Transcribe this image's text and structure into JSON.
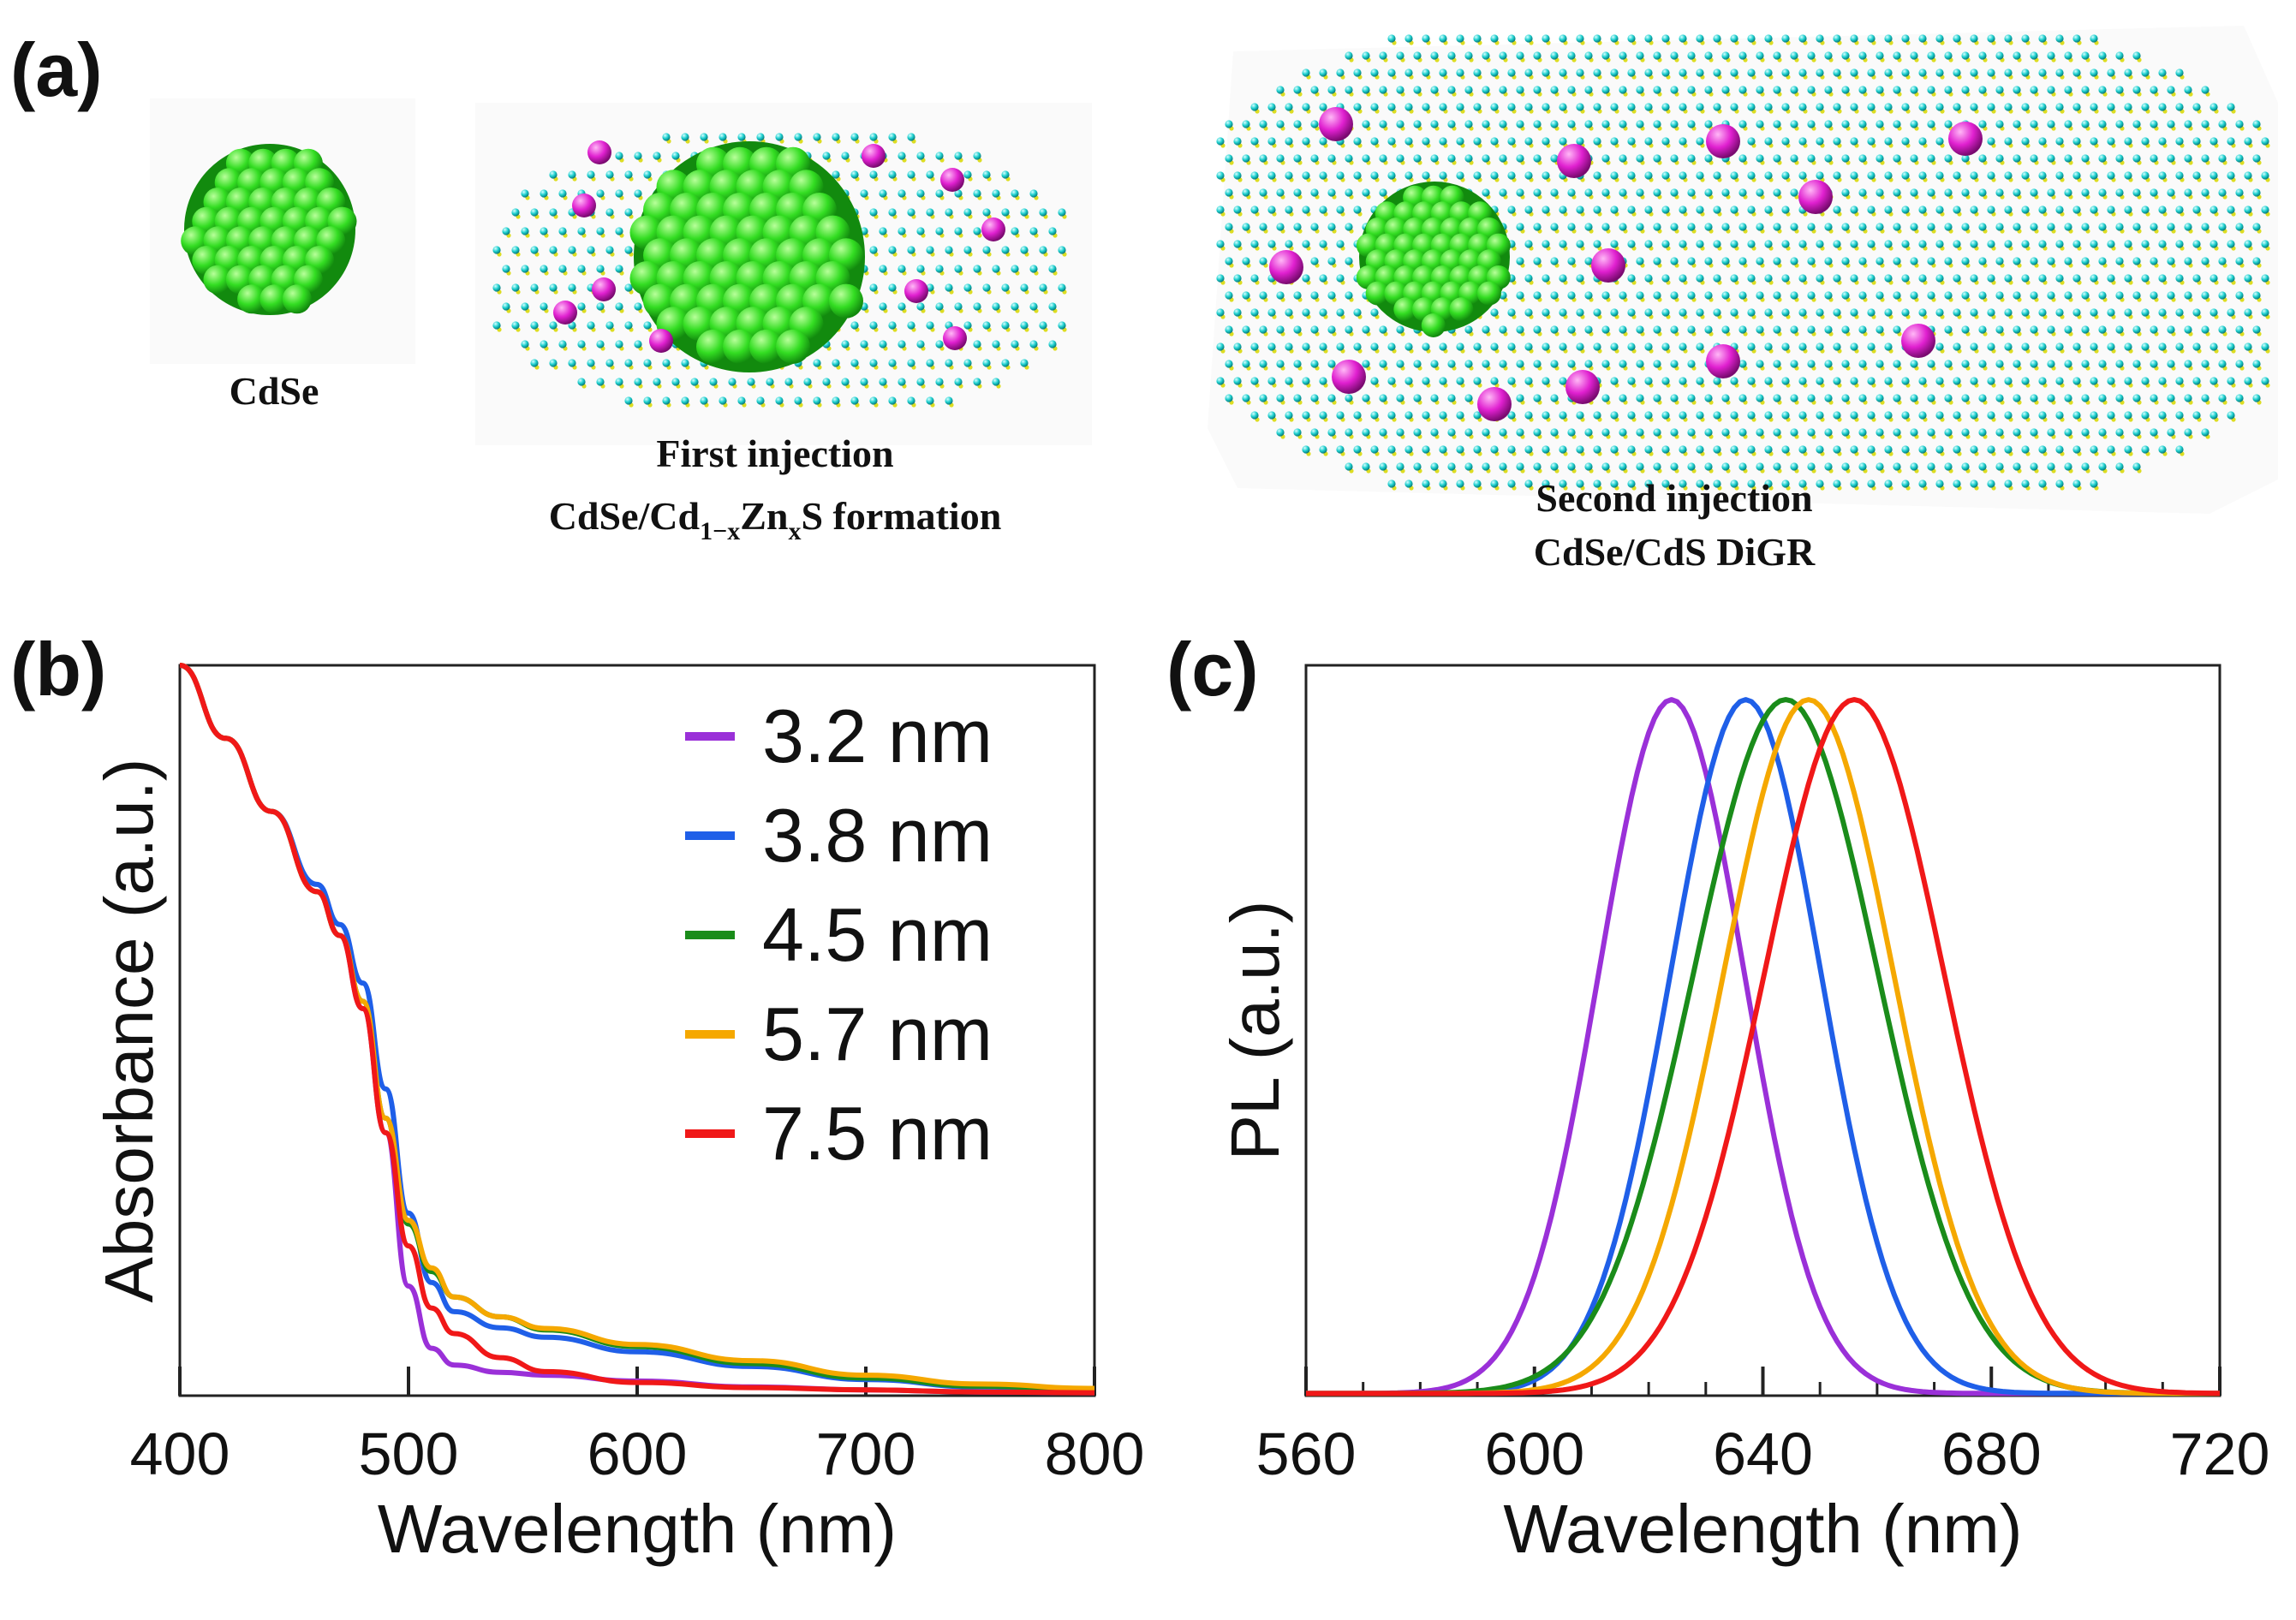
{
  "panels": {
    "a": {
      "letter": "(a)",
      "cdse_label": "CdSe",
      "first_line1": "First injection",
      "first_line2_pre": "CdSe/Cd",
      "first_line2_sub1": "1−x",
      "first_line2_mid": "Zn",
      "first_line2_sub2": "x",
      "first_line2_post": "S formation",
      "second_line1": "Second injection",
      "second_line2": "CdSe/CdS DiGR"
    },
    "b": {
      "letter": "(b)"
    },
    "c": {
      "letter": "(c)"
    }
  },
  "colors": {
    "core_green": "#33dd22",
    "core_dark": "#128a0e",
    "lattice_cyan": "#1ccfcf",
    "lattice_yellow": "#dddd22",
    "dopant_magenta": "#e020d0",
    "s1": "#9a30d8",
    "s2": "#1f5fe8",
    "s3": "#1a8c1a",
    "s4": "#f5a800",
    "s5": "#f01818"
  },
  "chart_data": [
    {
      "type": "line",
      "title": "",
      "xlabel": "Wavelength (nm)",
      "ylabel": "Absorbance (a.u.)",
      "xlim": [
        400,
        800
      ],
      "ylim": [
        0,
        1
      ],
      "xticks": [
        400,
        500,
        600,
        700,
        800
      ],
      "x": [
        400,
        420,
        440,
        460,
        470,
        480,
        490,
        500,
        510,
        520,
        540,
        560,
        600,
        650,
        700,
        750,
        800
      ],
      "series": [
        {
          "name": "3.2 nm",
          "color": "#9a30d8",
          "values": [
            1.0,
            0.9,
            0.8,
            0.69,
            0.63,
            0.53,
            0.36,
            0.15,
            0.065,
            0.042,
            0.032,
            0.028,
            0.02,
            0.012,
            0.008,
            0.005,
            0.004
          ]
        },
        {
          "name": "3.8 nm",
          "color": "#1f5fe8",
          "values": [
            1.0,
            0.9,
            0.8,
            0.7,
            0.645,
            0.565,
            0.42,
            0.25,
            0.155,
            0.115,
            0.093,
            0.08,
            0.06,
            0.04,
            0.022,
            0.012,
            0.007
          ]
        },
        {
          "name": "4.5 nm",
          "color": "#1a8c1a",
          "values": [
            1.0,
            0.9,
            0.8,
            0.69,
            0.63,
            0.54,
            0.38,
            0.235,
            0.17,
            0.135,
            0.108,
            0.09,
            0.067,
            0.044,
            0.024,
            0.013,
            0.008
          ]
        },
        {
          "name": "5.7 nm",
          "color": "#f5a800",
          "values": [
            1.0,
            0.9,
            0.8,
            0.69,
            0.63,
            0.54,
            0.38,
            0.24,
            0.175,
            0.135,
            0.108,
            0.092,
            0.07,
            0.048,
            0.028,
            0.016,
            0.01
          ]
        },
        {
          "name": "7.5 nm",
          "color": "#f01818",
          "values": [
            1.0,
            0.9,
            0.8,
            0.69,
            0.63,
            0.53,
            0.36,
            0.205,
            0.12,
            0.085,
            0.052,
            0.033,
            0.018,
            0.011,
            0.008,
            0.005,
            0.004
          ]
        }
      ]
    },
    {
      "type": "line",
      "title": "",
      "xlabel": "Wavelength (nm)",
      "ylabel": "PL (a.u.)",
      "xlim": [
        560,
        720
      ],
      "ylim": [
        0,
        1
      ],
      "xticks": [
        560,
        600,
        640,
        680,
        720
      ],
      "line_shape": "peak",
      "series": [
        {
          "name": "3.2 nm",
          "color": "#9a30d8",
          "peak": 624,
          "fwhm": 30,
          "max": 0.95
        },
        {
          "name": "3.8 nm",
          "color": "#1f5fe8",
          "peak": 637,
          "fwhm": 31,
          "max": 0.95
        },
        {
          "name": "4.5 nm",
          "color": "#1a8c1a",
          "peak": 644,
          "fwhm": 38,
          "max": 0.95
        },
        {
          "name": "5.7 nm",
          "color": "#f5a800",
          "peak": 648,
          "fwhm": 35,
          "max": 0.95
        },
        {
          "name": "7.5 nm",
          "color": "#f01818",
          "peak": 656,
          "fwhm": 37,
          "max": 0.95
        }
      ]
    }
  ]
}
